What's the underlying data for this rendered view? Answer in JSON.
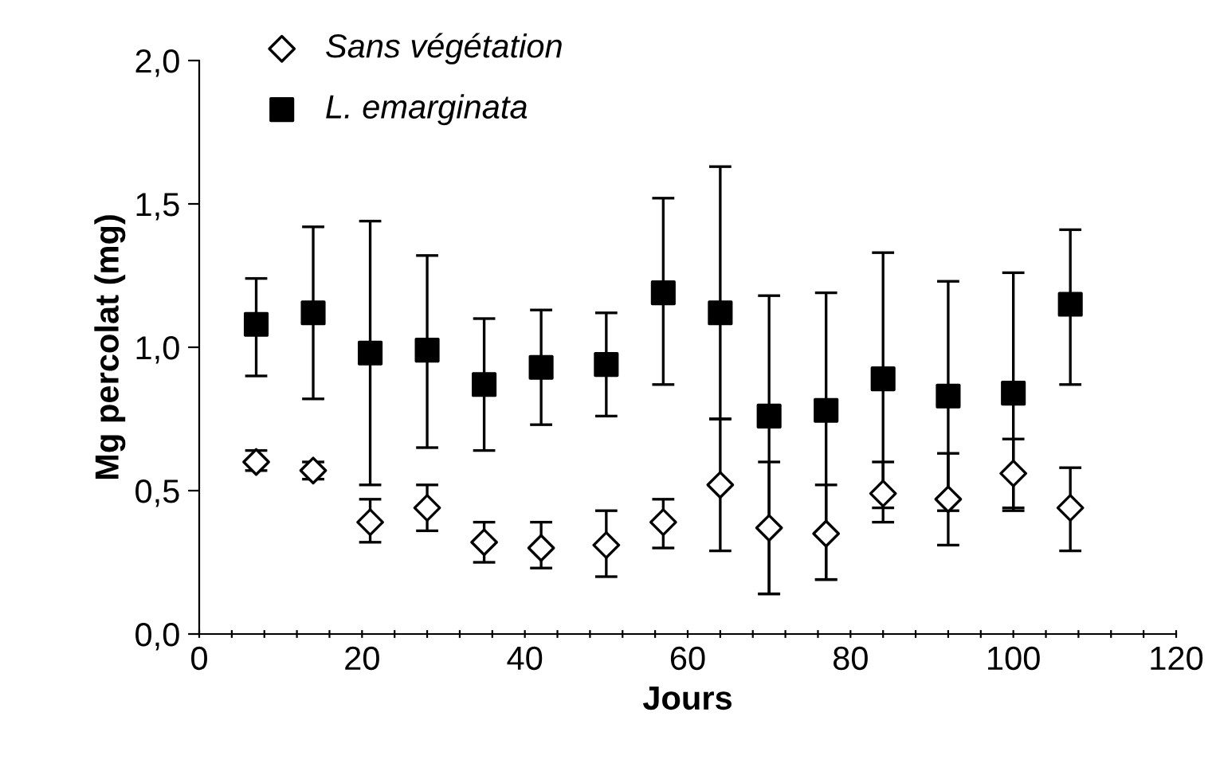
{
  "chart_data": {
    "type": "scatter",
    "xlabel": "Jours",
    "ylabel": "Mg percolat (mg)",
    "x": [
      7,
      14,
      21,
      28,
      35,
      42,
      50,
      57,
      64,
      70,
      77,
      84,
      92,
      100,
      107
    ],
    "series": [
      {
        "name": "Sans végétation",
        "color": "#ffffff",
        "marker": "diamond",
        "values": [
          0.6,
          0.57,
          0.39,
          0.44,
          0.32,
          0.3,
          0.31,
          0.39,
          0.52,
          0.37,
          0.35,
          0.49,
          0.47,
          0.56,
          0.44
        ],
        "errors": [
          [
            0.57,
            0.64
          ],
          [
            0.54,
            0.6
          ],
          [
            0.32,
            0.47
          ],
          [
            0.36,
            0.52
          ],
          [
            0.25,
            0.39
          ],
          [
            0.23,
            0.39
          ],
          [
            0.2,
            0.43
          ],
          [
            0.3,
            0.47
          ],
          [
            0.29,
            0.75
          ],
          [
            0.14,
            0.6
          ],
          [
            0.19,
            0.52
          ],
          [
            0.39,
            0.6
          ],
          [
            0.31,
            0.63
          ],
          [
            0.44,
            0.68
          ],
          [
            0.29,
            0.58
          ]
        ]
      },
      {
        "name": "L. emarginata",
        "color": "#000000",
        "marker": "square",
        "values": [
          1.08,
          1.12,
          0.98,
          0.99,
          0.87,
          0.93,
          0.94,
          1.19,
          1.12,
          0.76,
          0.78,
          0.89,
          0.83,
          0.84,
          1.15
        ],
        "errors": [
          [
            0.9,
            1.24
          ],
          [
            0.82,
            1.42
          ],
          [
            0.52,
            1.44
          ],
          [
            0.65,
            1.32
          ],
          [
            0.64,
            1.1
          ],
          [
            0.73,
            1.13
          ],
          [
            0.76,
            1.12
          ],
          [
            0.87,
            1.52
          ],
          [
            0.75,
            1.63
          ],
          [
            0.14,
            1.18
          ],
          [
            0.19,
            1.19
          ],
          [
            0.44,
            1.33
          ],
          [
            0.43,
            1.23
          ],
          [
            0.43,
            1.26
          ],
          [
            0.87,
            1.41
          ]
        ]
      }
    ],
    "xlim": [
      0,
      120
    ],
    "xticks": [
      0,
      {
        "value": 4,
        "label": null
      },
      {
        "value": 8,
        "label": null
      },
      {
        "value": 12,
        "label": null
      },
      {
        "value": 16,
        "label": null
      },
      20,
      {
        "value": 24,
        "label": null
      },
      {
        "value": 28,
        "label": null
      },
      {
        "value": 32,
        "label": null
      },
      {
        "value": 36,
        "label": null
      },
      40,
      {
        "value": 44,
        "label": null
      },
      {
        "value": 48,
        "label": null
      },
      {
        "value": 52,
        "label": null
      },
      {
        "value": 56,
        "label": null
      },
      60,
      {
        "value": 64,
        "label": null
      },
      {
        "value": 68,
        "label": null
      },
      {
        "value": 72,
        "label": null
      },
      {
        "value": 76,
        "label": null
      },
      80,
      {
        "value": 84,
        "label": null
      },
      {
        "value": 88,
        "label": null
      },
      {
        "value": 92,
        "label": null
      },
      {
        "value": 96,
        "label": null
      },
      100,
      {
        "value": 104,
        "label": null
      },
      {
        "value": 108,
        "label": null
      },
      {
        "value": 112,
        "label": null
      },
      {
        "value": 116,
        "label": null
      },
      120
    ],
    "ylim": [
      0,
      2.0
    ],
    "yticks": [
      {
        "value": 0,
        "label": "0,0"
      },
      {
        "value": 0.5,
        "label": "0,5"
      },
      {
        "value": 1.0,
        "label": "1,0"
      },
      {
        "value": 1.5,
        "label": "1,5"
      },
      {
        "value": 2.0,
        "label": "2,0"
      }
    ],
    "grid": false,
    "legend": "top left"
  }
}
